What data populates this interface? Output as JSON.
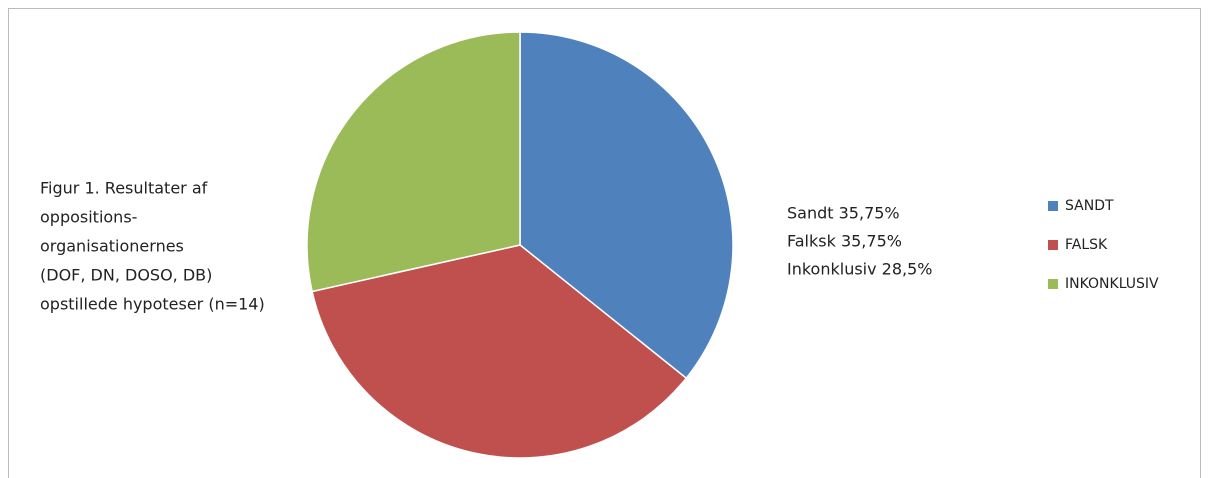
{
  "chart_data": {
    "type": "pie",
    "categories": [
      "SANDT",
      "FALSK",
      "INKONKLUSIV"
    ],
    "values": [
      35.75,
      35.75,
      28.5
    ],
    "colors": [
      "#4f81bd",
      "#c0504d",
      "#9bbb59"
    ],
    "caption": [
      "Figur 1. Resultater af",
      "oppositions-",
      "organisationernes",
      "(DOF, DN, DOSO, DB)",
      "opstillede hypoteser (n=14)"
    ],
    "notes": [
      "Sandt 35,75%",
      "Falksk 35,75%",
      "Inkonklusiv 28,5%"
    ],
    "legend": "right"
  }
}
